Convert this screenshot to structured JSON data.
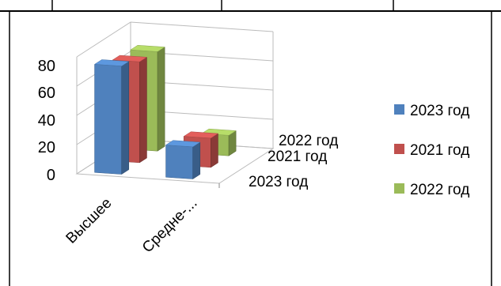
{
  "chart_data": {
    "type": "bar",
    "categories": [
      "Высшее",
      "Средне-..."
    ],
    "series": [
      {
        "name": "2023 год",
        "values": [
          74,
          22
        ]
      },
      {
        "name": "2021 год",
        "values": [
          69,
          20
        ]
      },
      {
        "name": "2022 год",
        "values": [
          68,
          14
        ]
      }
    ],
    "depth_labels": [
      "2023 год",
      "2021 год",
      "2022 год"
    ],
    "yticks": [
      0,
      20,
      40,
      60,
      80
    ],
    "ylim": [
      0,
      80
    ],
    "legend_position": "right",
    "grid": true,
    "colors": {
      "2023 год": "#4f81bd",
      "2021 год": "#c0504d",
      "2022 год": "#9bbb59"
    }
  }
}
